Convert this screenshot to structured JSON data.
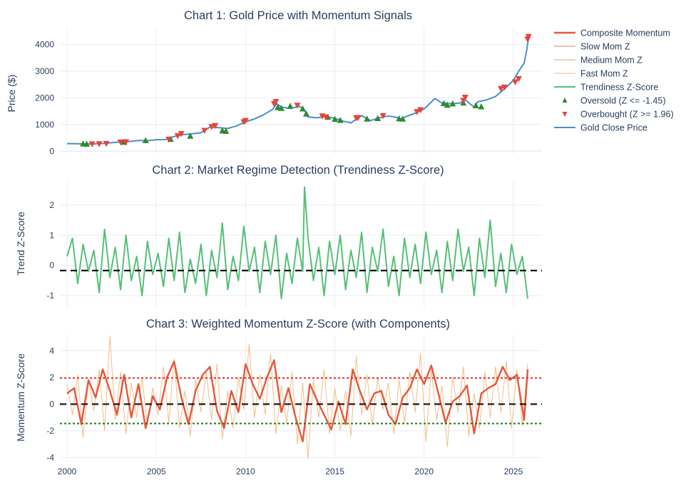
{
  "chart_data": [
    {
      "type": "line",
      "title": "Chart 1: Gold Price with Momentum Signals",
      "ylabel": "Price ($)",
      "xlim": [
        1999.6,
        2026.6
      ],
      "ylim": [
        -100,
        4650
      ],
      "yticks": [
        0,
        1000,
        2000,
        3000,
        4000
      ],
      "series": [
        {
          "name": "Gold Close Price",
          "color": "#4a8fcc",
          "x": [
            2000,
            2000.5,
            2001,
            2001.5,
            2002,
            2002.5,
            2003,
            2003.5,
            2004,
            2004.5,
            2005,
            2005.5,
            2006,
            2006.5,
            2007,
            2007.5,
            2008,
            2008.5,
            2009,
            2009.5,
            2010,
            2010.5,
            2011,
            2011.5,
            2011.75,
            2012,
            2012.5,
            2013,
            2013.25,
            2013.5,
            2014,
            2014.5,
            2015,
            2015.5,
            2015.9,
            2016.5,
            2017,
            2017.5,
            2018,
            2018.5,
            2018.7,
            2019,
            2019.5,
            2020,
            2020.6,
            2021,
            2021.5,
            2022,
            2022.3,
            2022.8,
            2023,
            2023.5,
            2024,
            2024.5,
            2025,
            2025.3,
            2025.6,
            2025.75,
            2025.85
          ],
          "values": [
            285,
            280,
            265,
            270,
            290,
            315,
            350,
            365,
            400,
            395,
            425,
            435,
            550,
            620,
            650,
            690,
            900,
            880,
            850,
            950,
            1100,
            1210,
            1360,
            1560,
            1780,
            1650,
            1600,
            1680,
            1590,
            1280,
            1250,
            1300,
            1230,
            1120,
            1060,
            1330,
            1150,
            1250,
            1320,
            1260,
            1200,
            1300,
            1420,
            1580,
            1970,
            1800,
            1780,
            1800,
            1920,
            1650,
            1850,
            1920,
            2050,
            2330,
            2650,
            3000,
            3300,
            3800,
            4250
          ]
        }
      ],
      "markers": [
        {
          "name": "Oversold (Z <= -1.45)",
          "color": "#2e8b2e",
          "symbol": "triangle-up",
          "x": [
            2000.9,
            2001.1,
            2003.2,
            2004.4,
            2005.8,
            2006.9,
            2008.7,
            2008.9,
            2011.8,
            2012.0,
            2012.5,
            2013.2,
            2013.4,
            2014.6,
            2015.0,
            2015.3,
            2016.8,
            2017.4,
            2018.6,
            2018.8,
            2021.1,
            2021.3,
            2021.6,
            2022.2,
            2022.9,
            2023.2
          ],
          "values": [
            270,
            260,
            330,
            395,
            440,
            560,
            760,
            740,
            1630,
            1600,
            1680,
            1580,
            1390,
            1270,
            1190,
            1150,
            1200,
            1220,
            1210,
            1200,
            1780,
            1720,
            1770,
            1800,
            1700,
            1660
          ]
        },
        {
          "name": "Overbought (Z >= 1.96)",
          "color": "#e8443a",
          "symbol": "triangle-down",
          "x": [
            2001.4,
            2001.8,
            2002.2,
            2003.0,
            2003.3,
            2005.7,
            2006.2,
            2006.4,
            2007.7,
            2008.1,
            2008.3,
            2009.9,
            2010.0,
            2011.6,
            2011.7,
            2012.9,
            2014.3,
            2014.5,
            2016.2,
            2016.3,
            2017.7,
            2019.6,
            2019.8,
            2022.2,
            2022.3,
            2024.3,
            2024.5,
            2025.1,
            2025.3,
            2025.8,
            2025.85
          ],
          "values": [
            275,
            280,
            290,
            345,
            350,
            450,
            580,
            660,
            780,
            920,
            960,
            1100,
            1150,
            1780,
            1860,
            1720,
            1320,
            1280,
            1250,
            1260,
            1330,
            1480,
            1550,
            1900,
            2020,
            2350,
            2400,
            2600,
            2720,
            4200,
            4300
          ]
        }
      ]
    },
    {
      "type": "line",
      "title": "Chart 2: Market Regime Detection (Trendiness Z-Score)",
      "ylabel": "Trend Z-Score",
      "xlim": [
        1999.6,
        2026.6
      ],
      "ylim": [
        -1.4,
        2.8
      ],
      "yticks": [
        -1,
        0,
        1,
        2
      ],
      "threshold": -0.17,
      "series": [
        {
          "name": "Trendiness Z-Score",
          "color": "#55c078",
          "x": [
            2000,
            2000.3,
            2000.6,
            2000.9,
            2001.2,
            2001.5,
            2001.8,
            2002.1,
            2002.4,
            2002.7,
            2003.0,
            2003.3,
            2003.6,
            2003.9,
            2004.2,
            2004.5,
            2004.8,
            2005.1,
            2005.4,
            2005.7,
            2006.0,
            2006.3,
            2006.6,
            2006.9,
            2007.2,
            2007.5,
            2007.8,
            2008.1,
            2008.4,
            2008.7,
            2009.0,
            2009.3,
            2009.6,
            2009.9,
            2010.2,
            2010.5,
            2010.8,
            2011.1,
            2011.4,
            2011.7,
            2012.0,
            2012.3,
            2012.6,
            2012.9,
            2013.2,
            2013.3,
            2013.5,
            2013.8,
            2014.1,
            2014.4,
            2014.7,
            2015.0,
            2015.3,
            2015.6,
            2015.9,
            2016.2,
            2016.5,
            2016.8,
            2017.1,
            2017.4,
            2017.7,
            2018.0,
            2018.3,
            2018.6,
            2018.9,
            2019.2,
            2019.5,
            2019.8,
            2020.1,
            2020.4,
            2020.7,
            2021.0,
            2021.3,
            2021.6,
            2021.9,
            2022.2,
            2022.5,
            2022.8,
            2023.1,
            2023.4,
            2023.7,
            2024.0,
            2024.3,
            2024.6,
            2024.9,
            2025.2,
            2025.5,
            2025.8
          ],
          "values": [
            0.3,
            0.9,
            -0.6,
            0.7,
            -0.2,
            0.5,
            -0.9,
            1.2,
            -0.4,
            0.6,
            -0.8,
            1.0,
            -0.5,
            0.3,
            -1.0,
            0.8,
            -0.3,
            0.4,
            -0.7,
            0.9,
            -0.5,
            1.1,
            -0.9,
            0.2,
            -0.6,
            0.7,
            -1.0,
            0.5,
            -0.4,
            1.4,
            -0.8,
            0.3,
            -0.5,
            1.3,
            -0.2,
            0.6,
            -0.9,
            0.8,
            -0.3,
            1.0,
            -1.1,
            0.4,
            -0.6,
            0.9,
            -0.2,
            2.6,
            0.9,
            -0.5,
            0.6,
            -1.0,
            0.8,
            -0.3,
            1.0,
            -0.8,
            0.5,
            -0.4,
            1.1,
            -0.9,
            0.6,
            -0.2,
            1.2,
            -0.7,
            0.3,
            -1.0,
            0.9,
            -0.4,
            0.7,
            -0.6,
            1.1,
            -0.3,
            0.5,
            -0.9,
            0.8,
            -0.5,
            1.2,
            -0.2,
            0.6,
            -1.0,
            0.9,
            -0.4,
            1.5,
            -0.7,
            0.4,
            -0.9,
            0.7,
            -0.3,
            0.3,
            -1.1
          ]
        }
      ]
    },
    {
      "type": "line",
      "title": "Chart 3: Weighted Momentum Z-Score (with Components)",
      "ylabel": "Momentum Z-Score",
      "xlim": [
        1999.6,
        2026.6
      ],
      "ylim": [
        -4.3,
        5.2
      ],
      "yticks": [
        -4,
        -2,
        0,
        2,
        4
      ],
      "xticks": [
        2000,
        2005,
        2010,
        2015,
        2020,
        2025
      ],
      "thresholds": {
        "overbought": 1.96,
        "zero": 0,
        "oversold": -1.45
      },
      "series": [
        {
          "name": "Composite Momentum",
          "color": "#e4583e",
          "x": [
            2000,
            2000.4,
            2000.8,
            2001.2,
            2001.6,
            2002.0,
            2002.4,
            2002.8,
            2003.2,
            2003.6,
            2004.0,
            2004.4,
            2004.8,
            2005.2,
            2005.6,
            2006.0,
            2006.4,
            2006.8,
            2007.2,
            2007.6,
            2008.0,
            2008.4,
            2008.8,
            2009.2,
            2009.6,
            2010.0,
            2010.4,
            2010.8,
            2011.2,
            2011.6,
            2012.0,
            2012.4,
            2012.8,
            2013.2,
            2013.6,
            2014.0,
            2014.4,
            2014.8,
            2015.2,
            2015.6,
            2016.0,
            2016.4,
            2016.8,
            2017.2,
            2017.6,
            2018.0,
            2018.4,
            2018.8,
            2019.2,
            2019.6,
            2020.0,
            2020.4,
            2020.8,
            2021.2,
            2021.6,
            2022.0,
            2022.4,
            2022.8,
            2023.2,
            2023.6,
            2024.0,
            2024.4,
            2024.8,
            2025.2,
            2025.6,
            2025.8
          ],
          "values": [
            0.8,
            1.2,
            -1.5,
            1.8,
            0.5,
            2.6,
            1.0,
            -0.8,
            2.2,
            -1.0,
            1.5,
            -1.8,
            0.6,
            -0.4,
            2.0,
            3.2,
            0.5,
            -1.5,
            1.0,
            2.2,
            2.8,
            -0.5,
            -1.8,
            1.0,
            -0.6,
            3.0,
            1.5,
            0.4,
            2.0,
            3.3,
            -0.6,
            1.2,
            -1.0,
            -2.8,
            1.5,
            0.3,
            -0.8,
            -1.9,
            0.2,
            -1.5,
            2.6,
            1.0,
            -0.4,
            0.8,
            1.0,
            -0.8,
            -1.5,
            0.5,
            1.2,
            2.6,
            1.5,
            2.9,
            0.8,
            -1.4,
            0.2,
            0.6,
            1.4,
            -2.2,
            0.8,
            1.2,
            1.5,
            2.8,
            1.8,
            2.2,
            -1.2,
            2.6
          ]
        },
        {
          "name": "Slow Mom Z",
          "color": "#d2885a"
        },
        {
          "name": "Medium Mom Z",
          "color": "#dfa16a"
        },
        {
          "name": "Fast Mom Z",
          "color": "#f1bf85",
          "x": [
            2000,
            2000.3,
            2000.6,
            2000.9,
            2001.2,
            2001.5,
            2001.8,
            2002.1,
            2002.4,
            2002.7,
            2003.0,
            2003.3,
            2003.6,
            2003.9,
            2004.2,
            2004.5,
            2004.8,
            2005.1,
            2005.4,
            2005.7,
            2006.0,
            2006.3,
            2006.6,
            2006.9,
            2007.2,
            2007.5,
            2007.8,
            2008.1,
            2008.4,
            2008.7,
            2009.0,
            2009.3,
            2009.6,
            2009.9,
            2010.2,
            2010.5,
            2010.8,
            2011.1,
            2011.4,
            2011.7,
            2012.0,
            2012.3,
            2012.6,
            2012.9,
            2013.2,
            2013.5,
            2013.8,
            2014.1,
            2014.4,
            2014.7,
            2015.0,
            2015.3,
            2015.6,
            2015.9,
            2016.2,
            2016.5,
            2016.8,
            2017.1,
            2017.4,
            2017.7,
            2018.0,
            2018.3,
            2018.6,
            2018.9,
            2019.2,
            2019.5,
            2019.8,
            2020.1,
            2020.4,
            2020.7,
            2021.0,
            2021.3,
            2021.6,
            2021.9,
            2022.2,
            2022.5,
            2022.8,
            2023.1,
            2023.4,
            2023.7,
            2024.0,
            2024.3,
            2024.6,
            2024.9,
            2025.2,
            2025.5,
            2025.8
          ],
          "values": [
            1.5,
            -0.8,
            2.2,
            -2.5,
            1.8,
            -0.5,
            2.6,
            -2.0,
            5.1,
            -1.2,
            2.4,
            -2.2,
            1.6,
            -1.0,
            2.0,
            -1.6,
            1.2,
            -0.8,
            2.8,
            -1.4,
            3.4,
            -1.8,
            1.0,
            -2.4,
            1.8,
            -0.6,
            2.4,
            -1.2,
            3.0,
            -2.6,
            1.0,
            -1.8,
            2.0,
            -0.4,
            4.5,
            -1.0,
            2.2,
            -0.8,
            3.8,
            -2.2,
            1.4,
            -1.4,
            2.4,
            -3.0,
            1.6,
            -4.1,
            1.8,
            -1.0,
            2.6,
            -2.2,
            1.2,
            -2.0,
            1.0,
            -2.4,
            3.6,
            -0.8,
            2.2,
            -1.6,
            2.0,
            -0.4,
            1.6,
            -2.2,
            1.8,
            -1.4,
            2.4,
            -0.6,
            3.8,
            -2.8,
            2.6,
            -1.2,
            1.4,
            -3.2,
            2.0,
            -0.6,
            2.8,
            -2.4,
            0.8,
            -1.8,
            2.4,
            -1.0,
            2.8,
            -0.6,
            3.2,
            -1.8,
            2.6,
            -1.6,
            3.0
          ]
        }
      ]
    }
  ],
  "legend": {
    "items": [
      {
        "label": "Composite Momentum",
        "kind": "line",
        "color": "#e4583e",
        "width": 2.5
      },
      {
        "label": "Slow Mom Z",
        "kind": "line",
        "color": "#d2885a",
        "width": 1
      },
      {
        "label": "Medium Mom Z",
        "kind": "line",
        "color": "#dfa16a",
        "width": 1
      },
      {
        "label": "Fast Mom Z",
        "kind": "line",
        "color": "#f1bf85",
        "width": 1
      },
      {
        "label": "Trendiness Z-Score",
        "kind": "line",
        "color": "#55c078",
        "width": 2
      },
      {
        "label": "Oversold (Z <= -1.45)",
        "kind": "triangle-up",
        "color": "#2e8b2e"
      },
      {
        "label": "Overbought (Z >= 1.96)",
        "kind": "triangle-down",
        "color": "#e8443a"
      },
      {
        "label": "Gold Close Price",
        "kind": "line",
        "color": "#4a8fcc",
        "width": 2
      }
    ]
  },
  "colors": {
    "threshold_black": "#111111",
    "overbought_line": "#e4322a",
    "oversold_line": "#1f7a1f"
  }
}
